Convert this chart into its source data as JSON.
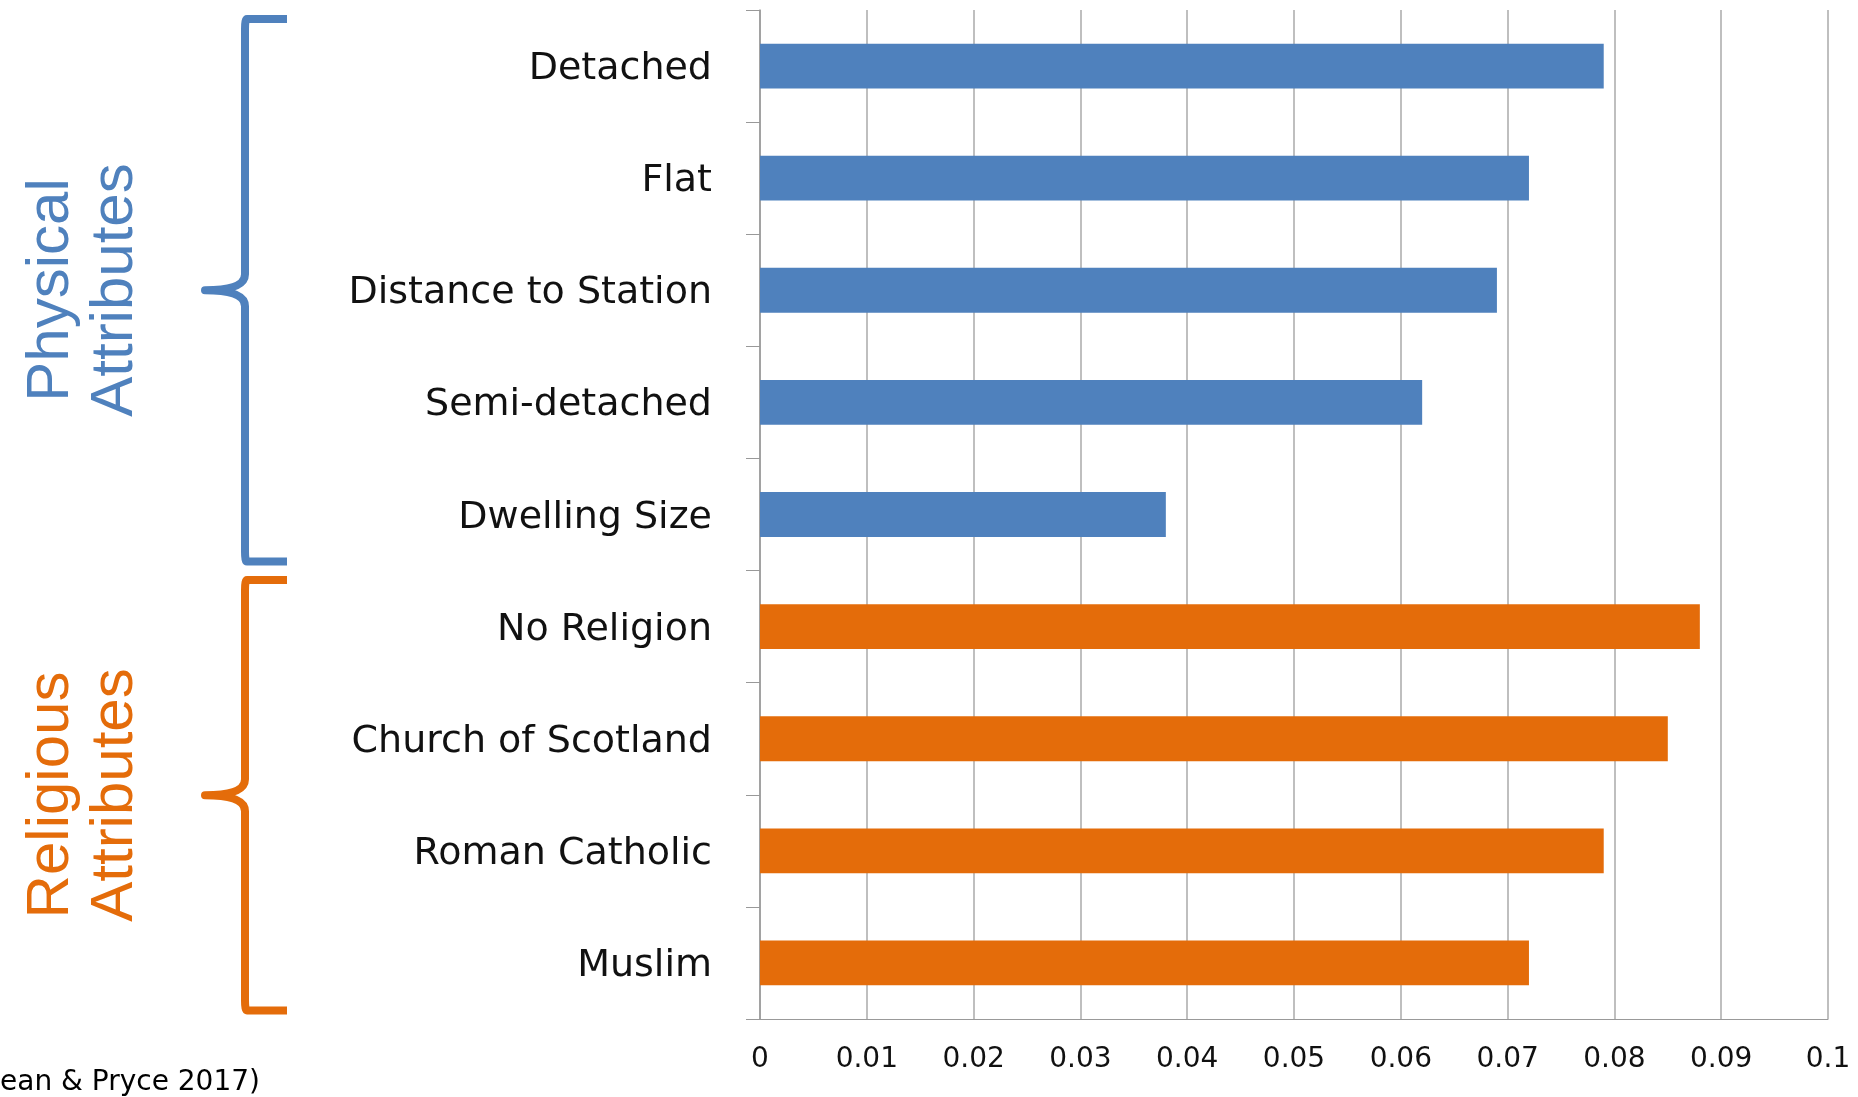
{
  "chart_data": {
    "type": "bar",
    "orientation": "horizontal",
    "stacked": true,
    "categories": [
      "Detached",
      "Flat",
      "Distance to Station",
      "Semi-detached",
      "Dwelling Size",
      "No Religion",
      "Church of Scotland",
      "Roman Catholic",
      "Muslim"
    ],
    "series": [
      {
        "name": "Physical Attributes",
        "color": "#4f81bd",
        "values": [
          0.079,
          0.072,
          0.069,
          0.062,
          0.038,
          null,
          null,
          null,
          null
        ]
      },
      {
        "name": "Religious Attributes",
        "color": "#e46c0a",
        "values": [
          null,
          null,
          null,
          null,
          null,
          0.088,
          0.085,
          0.079,
          0.072
        ]
      }
    ],
    "xlim": [
      0,
      0.1
    ],
    "xticks": [
      0,
      0.01,
      0.02,
      0.03,
      0.04,
      0.05,
      0.06,
      0.07,
      0.08,
      0.09,
      0.1
    ],
    "grid": "x",
    "legend": false,
    "annotations": [
      "ean & Pryce 2017)"
    ]
  }
}
